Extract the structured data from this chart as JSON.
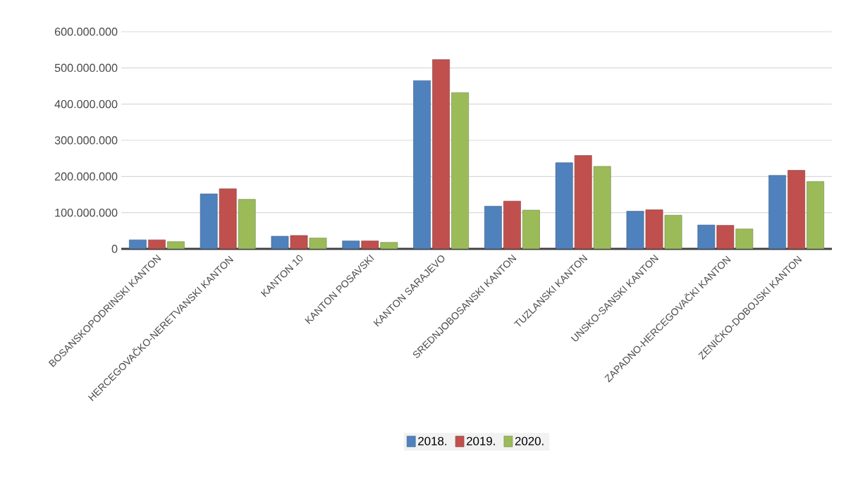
{
  "chart_data": {
    "type": "bar",
    "categories": [
      "BOSANSKOPODRINSKI KANTON",
      "HERCEGOVAČKO-NERETVANSKI KANTON",
      "KANTON 10",
      "KANTON POSAVSKI",
      "KANTON SARAJEVO",
      "SREDNJOBOSANSKI KANTON",
      "TUZLANSKI KANTON",
      "UNSKO-SANSKI KANTON",
      "ZAPADNO-HERCEGOVAČKI KANTON",
      "ZENIČKO-DOBOJSKI KANTON"
    ],
    "series": [
      {
        "name": "2018.",
        "color": "#4f81bd",
        "values": [
          25000000,
          152000000,
          35000000,
          22000000,
          465000000,
          118000000,
          238000000,
          104000000,
          66000000,
          203000000
        ]
      },
      {
        "name": "2019.",
        "color": "#c0504d",
        "values": [
          25000000,
          166000000,
          37000000,
          22000000,
          523000000,
          132000000,
          258000000,
          108000000,
          65000000,
          217000000
        ]
      },
      {
        "name": "2020.",
        "color": "#9bbb59",
        "values": [
          20000000,
          137000000,
          30000000,
          18000000,
          432000000,
          107000000,
          228000000,
          93000000,
          55000000,
          186000000
        ]
      }
    ],
    "ylim": [
      0,
      600000000
    ],
    "yticks": [
      {
        "value": 0,
        "label": "0"
      },
      {
        "value": 100000000,
        "label": "100.000.000"
      },
      {
        "value": 200000000,
        "label": "200.000.000"
      },
      {
        "value": 300000000,
        "label": "300.000.000"
      },
      {
        "value": 400000000,
        "label": "400.000.000"
      },
      {
        "value": 500000000,
        "label": "500.000.000"
      },
      {
        "value": 600000000,
        "label": "600.000.000"
      }
    ],
    "grid": "y",
    "legend": "bottom"
  }
}
